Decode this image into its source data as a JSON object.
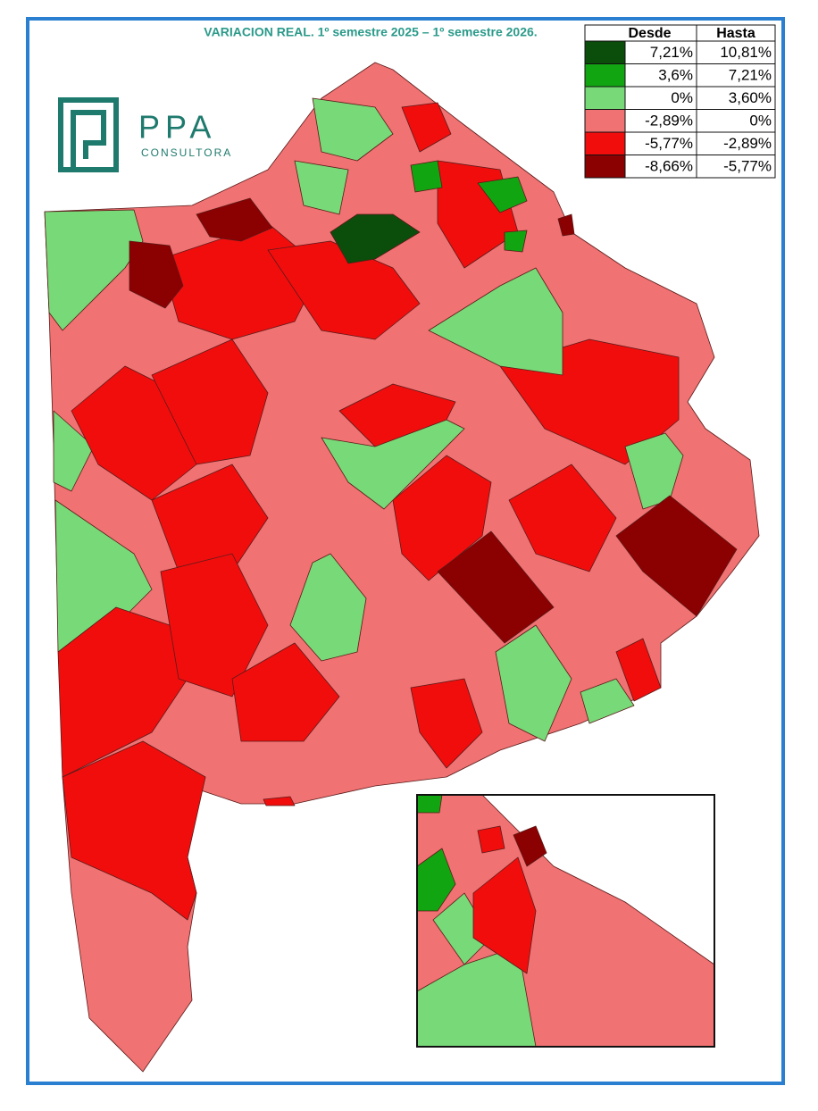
{
  "header": {
    "title": "VARIACION REAL. 1º semestre 2025 – 1º semestre 2026."
  },
  "logo": {
    "name": "PPA",
    "subtitle": "CONSULTORA"
  },
  "legend": {
    "columns": [
      "Desde",
      "Hasta"
    ],
    "rows": [
      {
        "color": "#0b4d0b",
        "from": "7,21%",
        "to": "10,81%"
      },
      {
        "color": "#12a512",
        "from": "3,6%",
        "to": "7,21%"
      },
      {
        "color": "#77d977",
        "from": "0%",
        "to": "3,60%"
      },
      {
        "color": "#f07272",
        "from": "-2,89%",
        "to": "0%"
      },
      {
        "color": "#f20d0d",
        "from": "-5,77%",
        "to": "-2,89%"
      },
      {
        "color": "#8b0000",
        "from": "-8,66%",
        "to": "-5,77%"
      }
    ]
  }
}
